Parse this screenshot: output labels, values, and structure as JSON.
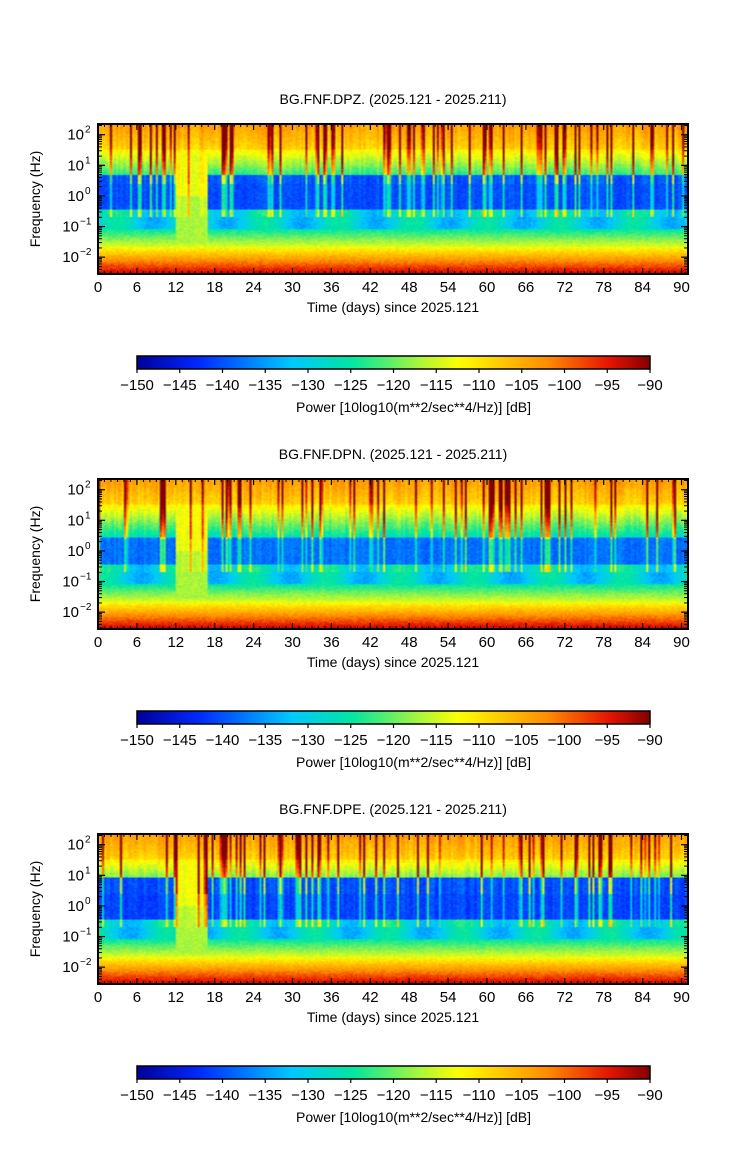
{
  "chart_data": [
    {
      "type": "heatmap",
      "title": "BG.FNF.DPZ. (2025.121 - 2025.211)",
      "xlabel": "Time (days) since 2025.121",
      "ylabel": "Frequency (Hz)",
      "x_ticks": [
        "0",
        "6",
        "12",
        "18",
        "24",
        "30",
        "36",
        "42",
        "48",
        "54",
        "60",
        "66",
        "72",
        "78",
        "84",
        "90"
      ],
      "y_ticks": [
        {
          "base": "10",
          "exp": "2"
        },
        {
          "base": "10",
          "exp": "1"
        },
        {
          "base": "10",
          "exp": "0"
        },
        {
          "base": "10",
          "exp": "−1"
        },
        {
          "base": "10",
          "exp": "−2"
        }
      ],
      "xlim": [
        0,
        91
      ],
      "ylim_log10": [
        -2.55,
        2.35
      ],
      "colorbar": {
        "label": "Power [10log10(m**2/sec**4/Hz)] [dB]",
        "ticks": [
          "−150",
          "−145",
          "−140",
          "−135",
          "−130",
          "−125",
          "−120",
          "−115",
          "−110",
          "−105",
          "−100",
          "−95",
          "−90"
        ],
        "range": [
          -150,
          -90
        ]
      },
      "features": {
        "band_top_log": 0.7,
        "mid_center_log": -0.65,
        "gap_days": [
          12,
          17
        ],
        "blue_strength": 1.0
      }
    },
    {
      "type": "heatmap",
      "title": "BG.FNF.DPN. (2025.121 - 2025.211)",
      "xlabel": "Time (days) since 2025.121",
      "ylabel": "Frequency (Hz)",
      "x_ticks": [
        "0",
        "6",
        "12",
        "18",
        "24",
        "30",
        "36",
        "42",
        "48",
        "54",
        "60",
        "66",
        "72",
        "78",
        "84",
        "90"
      ],
      "y_ticks": [
        {
          "base": "10",
          "exp": "2"
        },
        {
          "base": "10",
          "exp": "1"
        },
        {
          "base": "10",
          "exp": "0"
        },
        {
          "base": "10",
          "exp": "−1"
        },
        {
          "base": "10",
          "exp": "−2"
        }
      ],
      "xlim": [
        0,
        91
      ],
      "ylim_log10": [
        -2.55,
        2.35
      ],
      "colorbar": {
        "label": "Power [10log10(m**2/sec**4/Hz)] [dB]",
        "ticks": [
          "−150",
          "−145",
          "−140",
          "−135",
          "−130",
          "−125",
          "−120",
          "−115",
          "−110",
          "−105",
          "−100",
          "−95",
          "−90"
        ],
        "range": [
          -150,
          -90
        ]
      },
      "features": {
        "band_top_log": 0.45,
        "mid_center_log": -0.7,
        "gap_days": [
          12,
          17
        ],
        "blue_strength": 0.75
      }
    },
    {
      "type": "heatmap",
      "title": "BG.FNF.DPE. (2025.121 - 2025.211)",
      "xlabel": "Time (days) since 2025.121",
      "ylabel": "Frequency (Hz)",
      "x_ticks": [
        "0",
        "6",
        "12",
        "18",
        "24",
        "30",
        "36",
        "42",
        "48",
        "54",
        "60",
        "66",
        "72",
        "78",
        "84",
        "90"
      ],
      "y_ticks": [
        {
          "base": "10",
          "exp": "2"
        },
        {
          "base": "10",
          "exp": "1"
        },
        {
          "base": "10",
          "exp": "0"
        },
        {
          "base": "10",
          "exp": "−1"
        },
        {
          "base": "10",
          "exp": "−2"
        }
      ],
      "xlim": [
        0,
        91
      ],
      "ylim_log10": [
        -2.55,
        2.35
      ],
      "colorbar": {
        "label": "Power [10log10(m**2/sec**4/Hz)] [dB]",
        "ticks": [
          "−150",
          "−145",
          "−140",
          "−135",
          "−130",
          "−125",
          "−120",
          "−115",
          "−110",
          "−105",
          "−100",
          "−95",
          "−90"
        ],
        "range": [
          -150,
          -90
        ]
      },
      "features": {
        "band_top_log": 0.95,
        "mid_center_log": -0.35,
        "gap_days": [
          12,
          17
        ],
        "blue_strength": 1.1
      }
    }
  ]
}
